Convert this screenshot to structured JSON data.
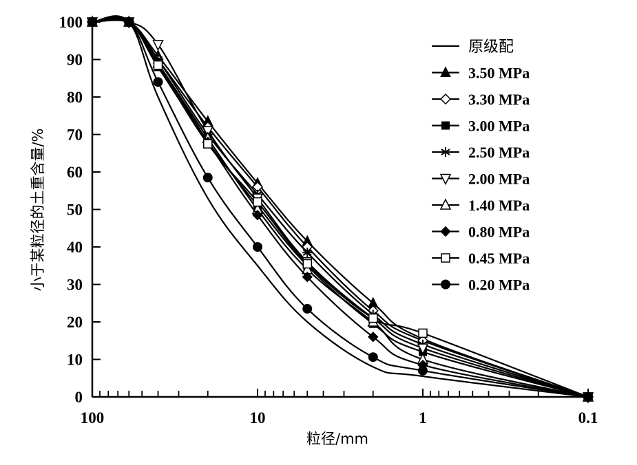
{
  "chart_data": {
    "type": "line",
    "title": "",
    "xlabel": "粒径/mm",
    "ylabel": "小于某粒径的土重含量/%",
    "xscale": "log",
    "xlim": [
      100,
      0.1
    ],
    "ylim": [
      0,
      100
    ],
    "x_ticks": [
      100,
      10,
      1,
      0.1
    ],
    "x_tick_labels": [
      "100",
      "10",
      "1",
      "0.1"
    ],
    "y_ticks": [
      0,
      10,
      20,
      30,
      40,
      50,
      60,
      70,
      80,
      90,
      100
    ],
    "y_tick_labels": [
      "0",
      "10",
      "20",
      "30",
      "40",
      "50",
      "60",
      "70",
      "80",
      "90",
      "100"
    ],
    "grid": false,
    "legend_position": "top-right",
    "x": [
      100,
      60,
      40,
      20,
      10,
      5,
      2,
      1,
      0.1
    ],
    "series": [
      {
        "name": "原级配",
        "marker": "none",
        "values": [
          100,
          100,
          80,
          53,
          35,
          20,
          8,
          5.5,
          0
        ]
      },
      {
        "name": "3.50 MPa",
        "marker": "triangle-up-filled",
        "values": [
          100,
          100,
          91,
          73.5,
          57,
          41.5,
          25,
          15.5,
          0
        ]
      },
      {
        "name": "3.30 MPa",
        "marker": "diamond-open",
        "values": [
          100,
          100,
          90,
          72,
          56,
          40,
          23,
          15,
          0
        ]
      },
      {
        "name": "3.00 MPa",
        "marker": "square-filled",
        "values": [
          100,
          100,
          88,
          68,
          51,
          35,
          19.5,
          12,
          0
        ]
      },
      {
        "name": "2.50 MPa",
        "marker": "asterisk",
        "values": [
          100,
          100,
          90,
          70,
          54,
          38.5,
          22,
          14,
          0
        ]
      },
      {
        "name": "2.00 MPa",
        "marker": "triangle-down-open",
        "values": [
          100,
          100,
          94,
          71,
          53,
          36,
          21,
          13,
          0
        ]
      },
      {
        "name": "1.40 MPa",
        "marker": "triangle-up-open",
        "values": [
          100,
          100,
          89,
          69,
          50,
          34,
          20,
          10,
          0
        ]
      },
      {
        "name": "0.80 MPa",
        "marker": "diamond-filled",
        "values": [
          100,
          100,
          89,
          68,
          48.5,
          32,
          16,
          8.5,
          0
        ]
      },
      {
        "name": "0.45 MPa",
        "marker": "square-open",
        "values": [
          100,
          100,
          88.5,
          67.5,
          52,
          35.5,
          21,
          17,
          0
        ]
      },
      {
        "name": "0.20 MPa",
        "marker": "circle-filled",
        "values": [
          100,
          100,
          84,
          58.5,
          40,
          23.5,
          10.6,
          7,
          0
        ]
      }
    ],
    "colors": {
      "line": "#000000",
      "background": "#ffffff"
    }
  }
}
